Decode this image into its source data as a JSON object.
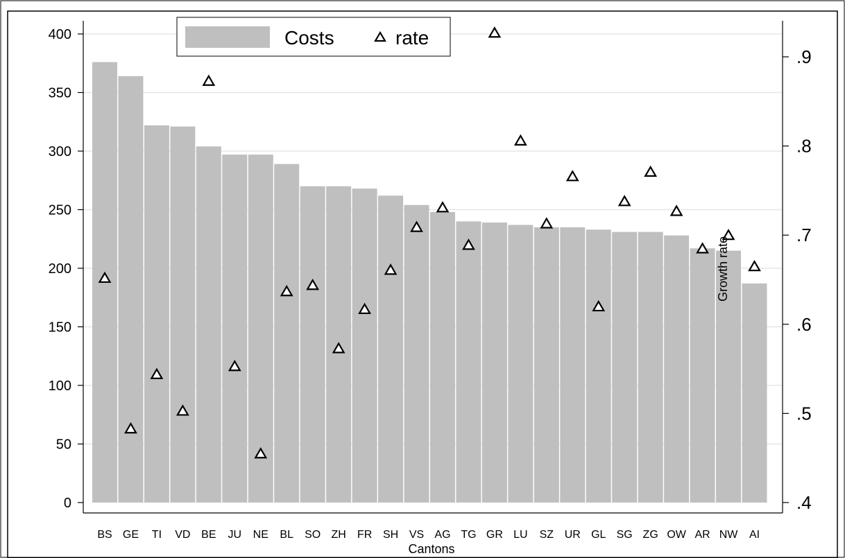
{
  "chart_data": {
    "type": "bar",
    "xlabel": "Cantons",
    "ylabel_right": "Growth rate",
    "categories": [
      "BS",
      "GE",
      "TI",
      "VD",
      "BE",
      "JU",
      "NE",
      "BL",
      "SO",
      "ZH",
      "FR",
      "SH",
      "VS",
      "AG",
      "TG",
      "GR",
      "LU",
      "SZ",
      "UR",
      "GL",
      "SG",
      "ZG",
      "OW",
      "AR",
      "NW",
      "AI"
    ],
    "series": [
      {
        "name": "Costs",
        "type": "bar",
        "axis": "left",
        "color": "#bfbfbf",
        "values": [
          376,
          364,
          322,
          321,
          304,
          297,
          297,
          289,
          270,
          270,
          268,
          262,
          254,
          248,
          240,
          239,
          237,
          235,
          235,
          233,
          231,
          231,
          228,
          217,
          215,
          187
        ]
      },
      {
        "name": "rate",
        "type": "scatter",
        "axis": "right",
        "marker": "hollow-triangle",
        "values": [
          0.652,
          0.483,
          0.544,
          0.503,
          0.873,
          0.553,
          0.455,
          0.637,
          0.644,
          0.573,
          0.617,
          0.661,
          0.709,
          0.731,
          0.689,
          0.927,
          0.806,
          0.713,
          0.766,
          0.62,
          0.738,
          0.771,
          0.727,
          0.685,
          0.7,
          0.665
        ]
      }
    ],
    "y_left": {
      "lim": [
        0,
        400
      ],
      "ticks": [
        0,
        50,
        100,
        150,
        200,
        250,
        300,
        350,
        400
      ],
      "tick_labels": [
        "0",
        "50",
        "100",
        "150",
        "200",
        "250",
        "300",
        "350",
        "400"
      ]
    },
    "y_right": {
      "lim": [
        0.4,
        0.93
      ],
      "ticks": [
        0.4,
        0.5,
        0.6,
        0.7,
        0.8,
        0.9
      ],
      "tick_labels": [
        ".4",
        ".5",
        ".6",
        ".7",
        ".8",
        ".9"
      ]
    },
    "grid": true,
    "legend": {
      "position": "top-center",
      "entries": [
        "Costs",
        "rate"
      ]
    }
  }
}
